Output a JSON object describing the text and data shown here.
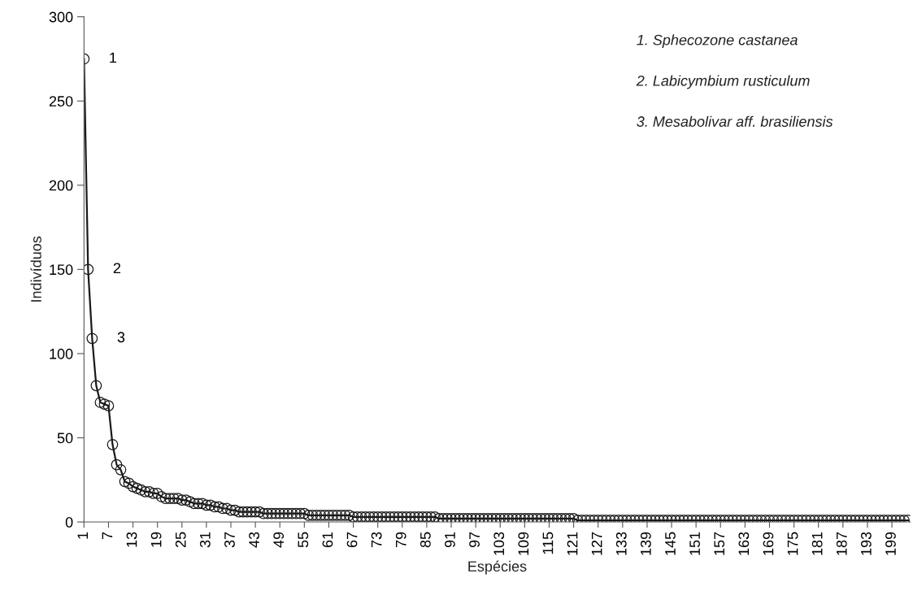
{
  "chart_data": {
    "type": "line",
    "xlabel": "Espécies",
    "ylabel": "Indivíduos",
    "categories": [
      "1",
      null,
      null,
      null,
      null,
      null,
      "7",
      null,
      null,
      null,
      null,
      null,
      "13",
      null,
      null,
      null,
      null,
      null,
      "19",
      null,
      null,
      null,
      null,
      null,
      "25",
      null,
      null,
      null,
      null,
      null,
      "31",
      null,
      null,
      null,
      null,
      null,
      "37",
      null,
      null,
      null,
      null,
      null,
      "43",
      null,
      null,
      null,
      null,
      null,
      "49",
      null,
      null,
      null,
      null,
      null,
      "55",
      null,
      null,
      null,
      null,
      null,
      "61",
      null,
      null,
      null,
      null,
      null,
      "67",
      null,
      null,
      null,
      null,
      null,
      "73",
      null,
      null,
      null,
      null,
      null,
      "79",
      null,
      null,
      null,
      null,
      null,
      "85",
      null,
      null,
      null,
      null,
      null,
      "91",
      null,
      null,
      null,
      null,
      null,
      "97",
      null,
      null,
      null,
      null,
      null,
      "103",
      null,
      null,
      null,
      null,
      null,
      "109",
      null,
      null,
      null,
      null,
      null,
      "115",
      null,
      null,
      null,
      null,
      null,
      "121",
      null,
      null,
      null,
      null,
      null,
      "127",
      null,
      null,
      null,
      null,
      null,
      "133",
      null,
      null,
      null,
      null,
      null,
      "139",
      null,
      null,
      null,
      null,
      null,
      "145",
      null,
      null,
      null,
      null,
      null,
      "151",
      null,
      null,
      null,
      null,
      null,
      "157",
      null,
      null,
      null,
      null,
      null,
      "163",
      null,
      null,
      null,
      null,
      null,
      "169",
      null,
      null,
      null,
      null,
      null,
      "175",
      null,
      null,
      null,
      null,
      null,
      "181",
      null,
      null,
      null,
      null,
      null,
      "187",
      null,
      null,
      null,
      null,
      null,
      "193",
      null,
      null,
      null,
      null,
      null,
      "199",
      null,
      null,
      null,
      null
    ],
    "series": [
      {
        "color": "#1a1a1a",
        "values": [
          275,
          150,
          109,
          81,
          71,
          70,
          69,
          46,
          34,
          31,
          24,
          23,
          21,
          20,
          19,
          18,
          18,
          17,
          17,
          15,
          14,
          14,
          14,
          14,
          13,
          13,
          12,
          11,
          11,
          11,
          10,
          10,
          9,
          9,
          8,
          8,
          7,
          7,
          6,
          6,
          6,
          6,
          6,
          6,
          5,
          5,
          5,
          5,
          5,
          5,
          5,
          5,
          5,
          5,
          5,
          4,
          4,
          4,
          4,
          4,
          4,
          4,
          4,
          4,
          4,
          4,
          3,
          3,
          3,
          3,
          3,
          3,
          3,
          3,
          3,
          3,
          3,
          3,
          3,
          3,
          3,
          3,
          3,
          3,
          3,
          3,
          3,
          2,
          2,
          2,
          2,
          2,
          2,
          2,
          2,
          2,
          2,
          2,
          2,
          2,
          2,
          2,
          2,
          2,
          2,
          2,
          2,
          2,
          2,
          2,
          2,
          2,
          2,
          2,
          2,
          2,
          2,
          2,
          2,
          2,
          2,
          1,
          1,
          1,
          1,
          1,
          1,
          1,
          1,
          1,
          1,
          1,
          1,
          1,
          1,
          1,
          1,
          1,
          1,
          1,
          1,
          1,
          1,
          1,
          1,
          1,
          1,
          1,
          1,
          1,
          1,
          1,
          1,
          1,
          1,
          1,
          1,
          1,
          1,
          1,
          1,
          1,
          1,
          1,
          1,
          1,
          1,
          1,
          1,
          1,
          1,
          1,
          1,
          1,
          1,
          1,
          1,
          1,
          1,
          1,
          1,
          1,
          1,
          1,
          1,
          1,
          1,
          1,
          1,
          1,
          1,
          1,
          1,
          1,
          1,
          1,
          1,
          1,
          1,
          1,
          1,
          1,
          1
        ]
      }
    ],
    "ylim": [
      0,
      300
    ],
    "yticks": [
      0,
      50,
      100,
      150,
      200,
      250,
      300
    ],
    "marker": "circle",
    "line_style": "solid",
    "grid": false,
    "legend": false,
    "annotations": [
      {
        "text": "1",
        "x": "1",
        "y": 275
      },
      "2",
      "3",
      "1. Sphecozone castanea",
      "2. Labicymbium rusticulum",
      "3. Mesabolivar aff. brasiliensis"
    ]
  }
}
